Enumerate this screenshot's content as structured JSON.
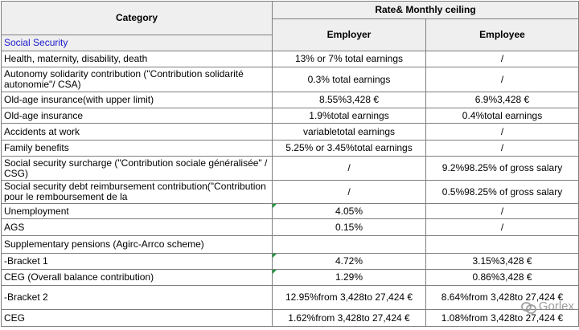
{
  "header": {
    "category": "Category",
    "rate_ceiling": "Rate& Monthly ceiling",
    "section": "Social Security",
    "employer": "Employer",
    "employee": "Employee"
  },
  "rows": [
    {
      "category": "Health, maternity, disability, death",
      "employer": "13% or 7% total earnings",
      "employee": "/"
    },
    {
      "category": "Autonomy solidarity contribution (\"Contribution solidarité autonomie\"/ CSA)",
      "employer": "0.3% total earnings",
      "employee": "/"
    },
    {
      "category": "Old-age insurance(with upper limit)",
      "employer": "8.55%3,428 €",
      "employee": "6.9%3,428 €"
    },
    {
      "category": "Old-age insurance",
      "employer": "1.9%total earnings",
      "employee": "0.4%total earnings"
    },
    {
      "category": "Accidents at work",
      "employer": "variabletotal earnings",
      "employee": "/"
    },
    {
      "category": "Family benefits",
      "employer": "5.25% or 3.45%total earnings",
      "employee": "/"
    },
    {
      "category": "Social security surcharge (\"Contribution sociale généralisée\" / CSG)",
      "employer": "/",
      "employee": "9.2%98.25% of gross salary"
    },
    {
      "category": "Social security debt reimbursement contribution(\"Contribution pour le remboursement de la",
      "employer": "/",
      "employee": "0.5%98.25% of gross salary"
    },
    {
      "category": "Unemployment",
      "employer": "4.05%",
      "employee": "/"
    },
    {
      "category": "AGS",
      "employer": "0.15%",
      "employee": "/"
    },
    {
      "category": "Supplementary pensions (Agirc-Arrco scheme)",
      "employer": "",
      "employee": ""
    },
    {
      "category": "-Bracket 1",
      "employer": "4.72%",
      "employee": "3.15%3,428 €"
    },
    {
      "category": "CEG (Overall balance contribution)",
      "employer": "1.29%",
      "employee": "0.86%3,428 €"
    },
    {
      "category": "-Bracket 2",
      "employer": "12.95%from 3,428to 27,424 €",
      "employee": "8.64%from 3,428to 27,424 €"
    },
    {
      "category": "CEG",
      "employer": "1.62%from 3,428to 27,424 €",
      "employee": "1.08%from 3,428to 27,424 €"
    }
  ],
  "watermark": {
    "text": "Gorlex",
    "icon": "wechat-bubble-icon"
  },
  "colors": {
    "header_bg": "#efefef",
    "section_text": "#1a1acc",
    "marker": "#1a9c3a",
    "border": "#7f7f7f"
  }
}
